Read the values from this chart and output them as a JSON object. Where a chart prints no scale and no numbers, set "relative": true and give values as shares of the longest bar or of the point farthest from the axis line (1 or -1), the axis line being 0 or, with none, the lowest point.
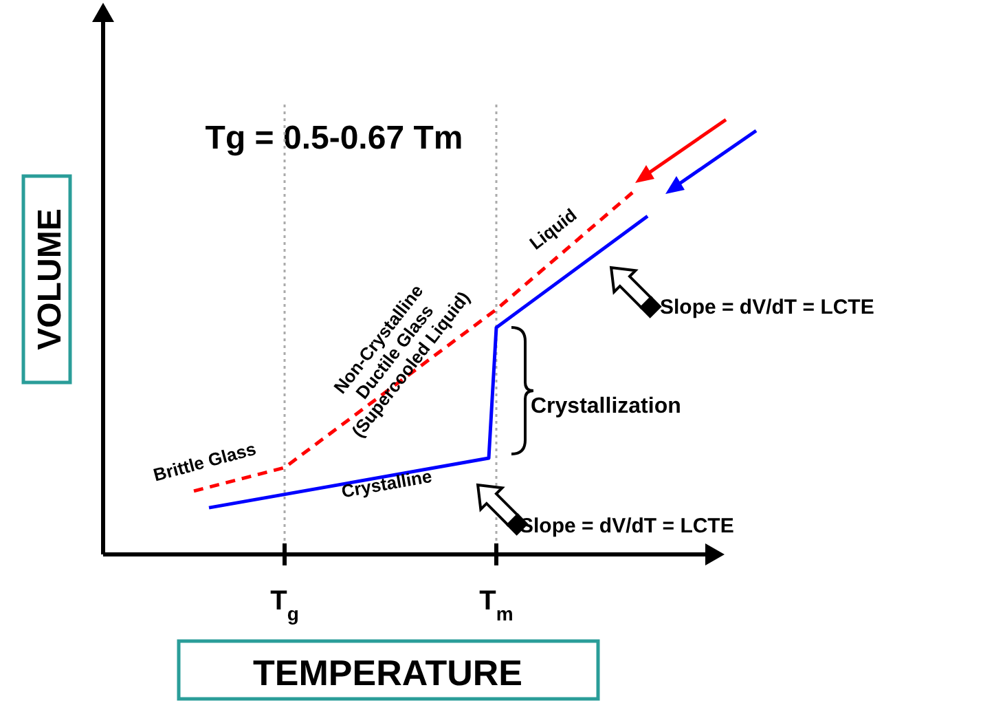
{
  "chart_data": {
    "type": "line",
    "title": "Tg = 0.5-0.67 Tm",
    "xlabel": "TEMPERATURE",
    "ylabel": "VOLUME",
    "relative": true,
    "categories": [
      null,
      null,
      null,
      null,
      null,
      null,
      null,
      null,
      null,
      null,
      null,
      null,
      null,
      null,
      null,
      null,
      null,
      null,
      null,
      null,
      null,
      null,
      null,
      null,
      "T$_{g}$",
      null,
      null,
      null,
      null,
      null,
      null,
      null,
      null,
      null,
      null,
      null,
      null,
      null,
      null,
      null,
      null,
      null,
      null,
      null,
      null,
      null,
      null,
      null,
      null,
      null,
      null,
      null,
      "T$_{m}$",
      null,
      null,
      null,
      null,
      null,
      null,
      null,
      null,
      null,
      null,
      null,
      null,
      null,
      null,
      null,
      null,
      null,
      null,
      null,
      null,
      null,
      null,
      null,
      null,
      null,
      null,
      null,
      null
    ],
    "series": [
      {
        "color": "#ff0000",
        "line_style": "dashed",
        "values": [
          null,
          null,
          null,
          null,
          null,
          null,
          null,
          null,
          null,
          null,
          null,
          null,
          0.175,
          null,
          null,
          null,
          null,
          null,
          null,
          null,
          null,
          null,
          null,
          null,
          0.24,
          null,
          null,
          null,
          null,
          null,
          null,
          null,
          null,
          null,
          null,
          null,
          null,
          null,
          null,
          null,
          null,
          null,
          null,
          null,
          null,
          null,
          null,
          null,
          null,
          null,
          null,
          null,
          0.677,
          null,
          null,
          null,
          null,
          null,
          null,
          null,
          null,
          null,
          null,
          null,
          null,
          null,
          null,
          null,
          null,
          null,
          1,
          null,
          null,
          null,
          null,
          null,
          null,
          null,
          null,
          null,
          null
        ]
      },
      {
        "color": "#0000ff",
        "line_style": "solid",
        "values": [
          null,
          null,
          null,
          null,
          null,
          null,
          null,
          null,
          null,
          null,
          null,
          null,
          null,
          null,
          0.129,
          null,
          null,
          null,
          null,
          null,
          null,
          null,
          null,
          null,
          null,
          null,
          null,
          null,
          null,
          null,
          null,
          null,
          null,
          null,
          null,
          null,
          null,
          null,
          null,
          null,
          null,
          null,
          null,
          null,
          null,
          null,
          null,
          null,
          null,
          null,
          null,
          0.266,
          0.627,
          null,
          null,
          null,
          null,
          null,
          null,
          null,
          null,
          null,
          null,
          null,
          null,
          null,
          null,
          null,
          null,
          null,
          null,
          null,
          0.935,
          null,
          null,
          null,
          null,
          null,
          null,
          null,
          null
        ]
      }
    ],
    "ref_lines": [
      {
        "axis": "x",
        "value": "T$_{g}$",
        "color": "#aaaaaa",
        "line_style": "dotted"
      },
      {
        "axis": "x",
        "value": "T$_{m}$",
        "color": "#aaaaaa",
        "line_style": "dotted"
      }
    ],
    "annotations": [
      "Liquid",
      "Non-Crystalline\nDuctile Glass\n(Supercooled Liquid)",
      "Brittle Glass",
      "Crystalline",
      "Crystallization",
      "Slope = dV/dT = LCTE",
      "Slope = dV/dT = LCTE"
    ]
  }
}
